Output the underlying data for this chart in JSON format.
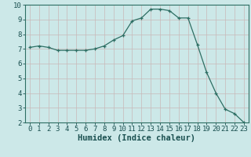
{
  "x": [
    0,
    1,
    2,
    3,
    4,
    5,
    6,
    7,
    8,
    9,
    10,
    11,
    12,
    13,
    14,
    15,
    16,
    17,
    18,
    19,
    20,
    21,
    22,
    23
  ],
  "y": [
    7.1,
    7.2,
    7.1,
    6.9,
    6.9,
    6.9,
    6.9,
    7.0,
    7.2,
    7.6,
    7.9,
    8.9,
    9.1,
    9.7,
    9.7,
    9.6,
    9.1,
    9.1,
    7.3,
    5.4,
    4.0,
    2.9,
    2.6,
    2.0
  ],
  "line_color": "#2d6e63",
  "marker_color": "#2d6e63",
  "bg_color": "#cce8e8",
  "grid_color_major": "#b8d4d4",
  "grid_color_minor": "#d8ecec",
  "xlabel": "Humidex (Indice chaleur)",
  "xlim": [
    0,
    23
  ],
  "ylim": [
    2,
    10
  ],
  "yticks": [
    2,
    3,
    4,
    5,
    6,
    7,
    8,
    9,
    10
  ],
  "xticks": [
    0,
    1,
    2,
    3,
    4,
    5,
    6,
    7,
    8,
    9,
    10,
    11,
    12,
    13,
    14,
    15,
    16,
    17,
    18,
    19,
    20,
    21,
    22,
    23
  ],
  "tick_color": "#1a5050",
  "xlabel_color": "#1a5050",
  "xlabel_fontsize": 7.5,
  "tick_fontsize": 6.5,
  "spine_color": "#2d6e63"
}
